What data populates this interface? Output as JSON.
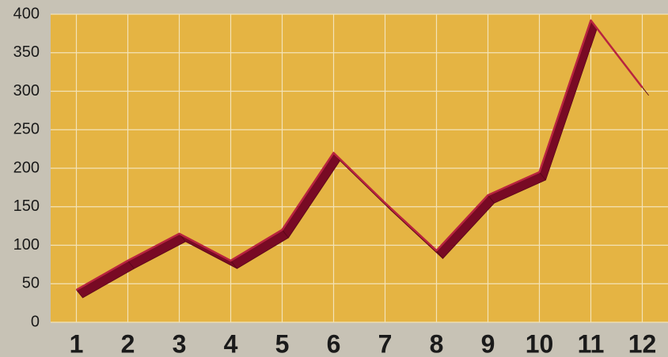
{
  "chart_data": {
    "type": "line",
    "categories": [
      "1",
      "2",
      "3",
      "4",
      "5",
      "6",
      "7",
      "8",
      "9",
      "10",
      "11",
      "12"
    ],
    "values": [
      42,
      80,
      115,
      80,
      120,
      220,
      155,
      93,
      165,
      195,
      392,
      305
    ],
    "color": "#780a24",
    "ylim": [
      0,
      400
    ],
    "yticks": [
      0,
      50,
      100,
      150,
      200,
      250,
      300,
      350,
      400
    ],
    "grid": true
  }
}
